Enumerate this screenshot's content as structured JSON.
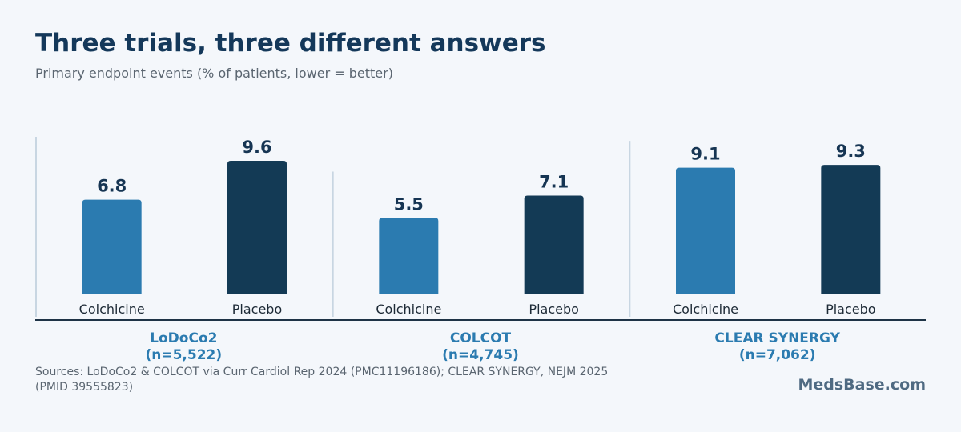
{
  "header": {
    "title": "Three trials, three different answers",
    "subtitle": "Primary endpoint events (% of patients, lower = better)"
  },
  "colors": {
    "colchicine": "#2b7bb0",
    "placebo": "#133a55",
    "trial_label": "#2b7bb0",
    "value_label": "#163553",
    "axis": "#1e3346",
    "divider": "#c8d6e2"
  },
  "chart_data": {
    "type": "bar",
    "ylim": [
      0,
      10
    ],
    "grid": false,
    "groups": [
      {
        "name": "LoDoCo2",
        "n": "(n=5,522)",
        "bars": [
          {
            "label": "Colchicine",
            "value": 6.8
          },
          {
            "label": "Placebo",
            "value": 9.6
          }
        ]
      },
      {
        "name": "COLCOT",
        "n": "(n=4,745)",
        "bars": [
          {
            "label": "Colchicine",
            "value": 5.5
          },
          {
            "label": "Placebo",
            "value": 7.1
          }
        ]
      },
      {
        "name": "CLEAR SYNERGY",
        "n": "(n=7,062)",
        "bars": [
          {
            "label": "Colchicine",
            "value": 9.1
          },
          {
            "label": "Placebo",
            "value": 9.3
          }
        ]
      }
    ]
  },
  "footer": {
    "sources": "Sources: LoDoCo2 & COLCOT via Curr Cardiol Rep 2024 (PMC11196186); CLEAR SYNERGY, NEJM 2025 (PMID 39555823)",
    "brand": "MedsBase.com"
  }
}
